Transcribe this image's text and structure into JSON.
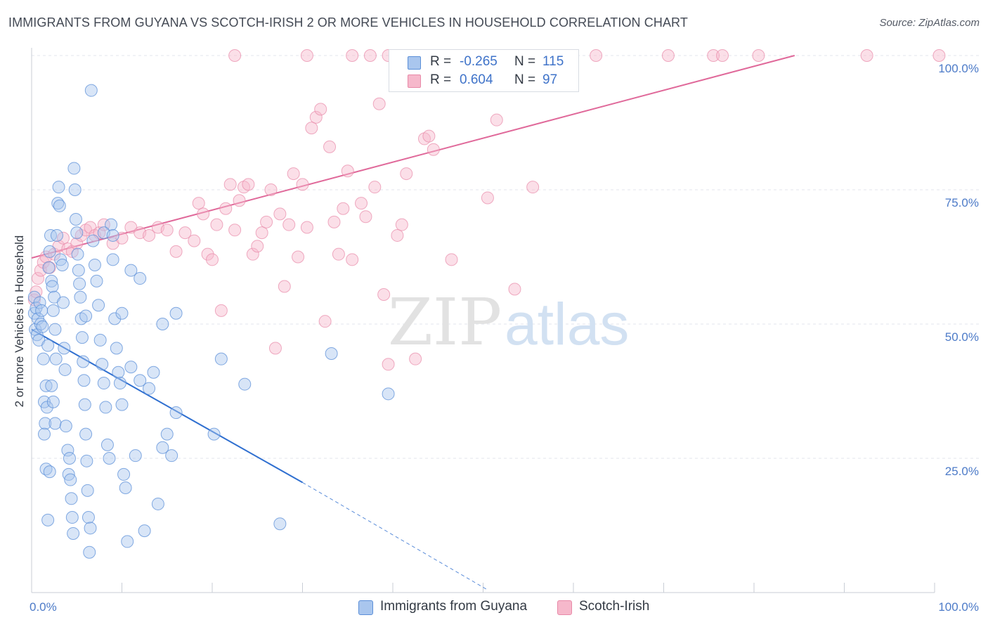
{
  "title": "IMMIGRANTS FROM GUYANA VS SCOTCH-IRISH 2 OR MORE VEHICLES IN HOUSEHOLD CORRELATION CHART",
  "source": "Source: ZipAtlas.com",
  "watermark": {
    "zip": "ZIP",
    "atlas": "atlas"
  },
  "legend_top": {
    "rows": [
      {
        "r_label": "R =",
        "r_value": "-0.265",
        "n_label": "N =",
        "n_value": "115"
      },
      {
        "r_label": "R =",
        "r_value": "0.604",
        "n_label": "N =",
        "n_value": "97"
      }
    ]
  },
  "legend_bottom": {
    "items": [
      "Immigrants from Guyana",
      "Scotch-Irish"
    ]
  },
  "colors": {
    "blue_fill": "#a9c6ee",
    "blue_stroke": "#5b8fd8",
    "blue_line": "#2f6fd0",
    "pink_fill": "#f6b8cb",
    "pink_stroke": "#e889a8",
    "pink_line": "#e0699a",
    "tick_text": "#4d7bc8",
    "grid": "#e3e6ec"
  },
  "chart_data": {
    "type": "scatter",
    "title": "IMMIGRANTS FROM GUYANA VS SCOTCH-IRISH 2 OR MORE VEHICLES IN HOUSEHOLD CORRELATION CHART",
    "xlabel": "",
    "ylabel": "2 or more Vehicles in Household",
    "xlim": [
      0,
      100
    ],
    "ylim": [
      0,
      102
    ],
    "x_tick_labels": [
      "0.0%",
      "100.0%"
    ],
    "y_ticks": [
      25,
      50,
      75,
      100
    ],
    "y_tick_labels": [
      "25.0%",
      "50.0%",
      "75.0%",
      "100.0%"
    ],
    "grid": true,
    "legend": "bottom-center",
    "series": [
      {
        "name": "Immigrants from Guyana",
        "r": -0.265,
        "n": 115,
        "trend": {
          "x0": 0,
          "y0": 49,
          "x1": 30,
          "y1": 20.5,
          "dashed_to_x": 50.5,
          "dashed_to_y": 0.5
        },
        "points": [
          [
            0.3,
            55
          ],
          [
            0.3,
            52
          ],
          [
            0.4,
            49
          ],
          [
            0.5,
            53
          ],
          [
            0.6,
            48
          ],
          [
            0.7,
            51
          ],
          [
            0.8,
            47
          ],
          [
            0.9,
            54
          ],
          [
            1.0,
            50
          ],
          [
            1.1,
            52.5
          ],
          [
            1.2,
            49.5
          ],
          [
            1.3,
            43.5
          ],
          [
            1.4,
            35.5
          ],
          [
            1.5,
            31.5
          ],
          [
            1.6,
            38.5
          ],
          [
            1.7,
            34.5
          ],
          [
            1.8,
            46
          ],
          [
            1.9,
            60.5
          ],
          [
            2.0,
            63.5
          ],
          [
            2.1,
            66.5
          ],
          [
            2.2,
            58
          ],
          [
            2.3,
            57
          ],
          [
            2.4,
            52.5
          ],
          [
            2.5,
            55
          ],
          [
            2.6,
            49
          ],
          [
            2.7,
            43.5
          ],
          [
            1.4,
            29.5
          ],
          [
            1.6,
            23
          ],
          [
            1.8,
            13.5
          ],
          [
            2.0,
            22.5
          ],
          [
            2.2,
            38.5
          ],
          [
            2.4,
            35.5
          ],
          [
            2.6,
            31.5
          ],
          [
            2.8,
            66.5
          ],
          [
            2.9,
            72.5
          ],
          [
            3.0,
            75.5
          ],
          [
            3.1,
            72
          ],
          [
            3.2,
            62
          ],
          [
            3.4,
            61
          ],
          [
            3.5,
            54
          ],
          [
            3.6,
            45.5
          ],
          [
            3.7,
            41.5
          ],
          [
            3.8,
            31
          ],
          [
            4.0,
            26.5
          ],
          [
            4.1,
            22
          ],
          [
            4.2,
            25
          ],
          [
            4.3,
            21
          ],
          [
            4.4,
            17.5
          ],
          [
            4.5,
            14
          ],
          [
            4.6,
            11
          ],
          [
            4.7,
            79
          ],
          [
            4.8,
            75
          ],
          [
            4.9,
            69.5
          ],
          [
            5.0,
            67
          ],
          [
            5.1,
            63
          ],
          [
            5.2,
            60
          ],
          [
            5.3,
            57.5
          ],
          [
            5.4,
            55
          ],
          [
            5.5,
            51
          ],
          [
            5.6,
            47.5
          ],
          [
            5.7,
            43
          ],
          [
            5.8,
            39.5
          ],
          [
            5.9,
            35
          ],
          [
            6.0,
            29.5
          ],
          [
            6.1,
            24.5
          ],
          [
            6.2,
            19
          ],
          [
            6.3,
            14
          ],
          [
            6.4,
            7.5
          ],
          [
            6.5,
            12
          ],
          [
            6.6,
            93.5
          ],
          [
            6.8,
            65.5
          ],
          [
            7.0,
            61
          ],
          [
            7.2,
            58
          ],
          [
            7.4,
            53.5
          ],
          [
            7.6,
            47
          ],
          [
            7.8,
            42.5
          ],
          [
            8.0,
            39
          ],
          [
            8.2,
            34.5
          ],
          [
            8.4,
            27.5
          ],
          [
            8.6,
            25
          ],
          [
            8.8,
            68.5
          ],
          [
            9.0,
            62
          ],
          [
            9.2,
            51
          ],
          [
            9.4,
            45.5
          ],
          [
            9.6,
            41
          ],
          [
            9.8,
            39
          ],
          [
            10.0,
            35
          ],
          [
            10.2,
            22
          ],
          [
            10.4,
            19.5
          ],
          [
            10.6,
            9.5
          ],
          [
            11.0,
            60
          ],
          [
            11.5,
            25.5
          ],
          [
            12.0,
            39.5
          ],
          [
            12.5,
            11.5
          ],
          [
            13.0,
            38
          ],
          [
            13.5,
            41
          ],
          [
            14.0,
            16.5
          ],
          [
            14.5,
            27
          ],
          [
            15.0,
            29.5
          ],
          [
            15.5,
            25.5
          ],
          [
            16.0,
            33.5
          ],
          [
            8.0,
            67
          ],
          [
            9.0,
            66.5
          ],
          [
            10.0,
            52
          ],
          [
            11.0,
            42
          ],
          [
            12.0,
            58.5
          ],
          [
            14.5,
            50
          ],
          [
            16.0,
            52
          ],
          [
            20.2,
            29.5
          ],
          [
            21.0,
            43.5
          ],
          [
            23.6,
            38.8
          ],
          [
            27.5,
            12.8
          ],
          [
            33.2,
            44.5
          ],
          [
            39.5,
            37
          ],
          [
            6.0,
            51.5
          ]
        ]
      },
      {
        "name": "Scotch-Irish",
        "r": 0.604,
        "n": 97,
        "trend": {
          "x0": 0,
          "y0": 62.3,
          "x1": 84.5,
          "y1": 100
        },
        "points": [
          [
            0.3,
            54.5
          ],
          [
            0.5,
            56
          ],
          [
            0.7,
            58.5
          ],
          [
            1.0,
            60
          ],
          [
            1.3,
            61.5
          ],
          [
            1.6,
            62.5
          ],
          [
            2.0,
            60.5
          ],
          [
            2.5,
            63
          ],
          [
            3.0,
            64.5
          ],
          [
            3.5,
            66
          ],
          [
            4.0,
            64
          ],
          [
            4.5,
            63.5
          ],
          [
            5.0,
            65
          ],
          [
            5.5,
            66.5
          ],
          [
            6.0,
            67.5
          ],
          [
            6.5,
            68
          ],
          [
            7.0,
            66.5
          ],
          [
            7.5,
            67
          ],
          [
            8.0,
            68.5
          ],
          [
            9.0,
            65
          ],
          [
            10.0,
            66
          ],
          [
            11.0,
            68
          ],
          [
            12.0,
            67
          ],
          [
            13.0,
            66.5
          ],
          [
            14.0,
            68
          ],
          [
            15.0,
            67.5
          ],
          [
            16.0,
            63.5
          ],
          [
            17.0,
            67
          ],
          [
            18.0,
            65.5
          ],
          [
            18.5,
            72.5
          ],
          [
            19.0,
            70.5
          ],
          [
            19.5,
            63
          ],
          [
            20.0,
            62
          ],
          [
            20.5,
            68.5
          ],
          [
            21.0,
            52.5
          ],
          [
            21.5,
            71.5
          ],
          [
            22.0,
            76
          ],
          [
            22.5,
            67.5
          ],
          [
            23.0,
            73
          ],
          [
            23.5,
            75.5
          ],
          [
            24.0,
            76
          ],
          [
            24.5,
            63
          ],
          [
            25.0,
            64.5
          ],
          [
            25.5,
            67
          ],
          [
            26.0,
            69
          ],
          [
            26.5,
            75
          ],
          [
            27.0,
            45.5
          ],
          [
            27.5,
            70.5
          ],
          [
            28.0,
            57
          ],
          [
            28.5,
            68.5
          ],
          [
            29.0,
            78
          ],
          [
            29.5,
            62.5
          ],
          [
            30.0,
            76
          ],
          [
            30.5,
            68
          ],
          [
            31.0,
            86.5
          ],
          [
            31.5,
            88.5
          ],
          [
            32.0,
            90
          ],
          [
            32.5,
            50.5
          ],
          [
            33.0,
            83
          ],
          [
            33.5,
            69
          ],
          [
            34.0,
            63
          ],
          [
            34.5,
            71.5
          ],
          [
            35.0,
            78.5
          ],
          [
            35.5,
            62
          ],
          [
            36.5,
            72.5
          ],
          [
            37.0,
            70
          ],
          [
            38.0,
            75.5
          ],
          [
            38.5,
            91
          ],
          [
            39.0,
            55.5
          ],
          [
            39.5,
            42.5
          ],
          [
            40.5,
            66.5
          ],
          [
            41.0,
            68.5
          ],
          [
            41.5,
            78
          ],
          [
            42.5,
            43.5
          ],
          [
            43.5,
            84.5
          ],
          [
            44.0,
            85
          ],
          [
            44.5,
            82.5
          ],
          [
            46.5,
            62
          ],
          [
            50.5,
            73.5
          ],
          [
            51.5,
            88
          ],
          [
            53.5,
            56.5
          ],
          [
            55.5,
            75.5
          ],
          [
            22.5,
            100
          ],
          [
            30.5,
            100
          ],
          [
            35.5,
            100
          ],
          [
            37.5,
            100
          ],
          [
            39.5,
            100
          ],
          [
            40.5,
            100
          ],
          [
            42.5,
            100
          ],
          [
            53.5,
            100
          ],
          [
            62.5,
            100
          ],
          [
            70.5,
            100
          ],
          [
            75.5,
            100
          ],
          [
            76.5,
            100
          ],
          [
            80.5,
            100
          ],
          [
            92.5,
            100
          ],
          [
            100.5,
            100
          ]
        ]
      }
    ]
  }
}
